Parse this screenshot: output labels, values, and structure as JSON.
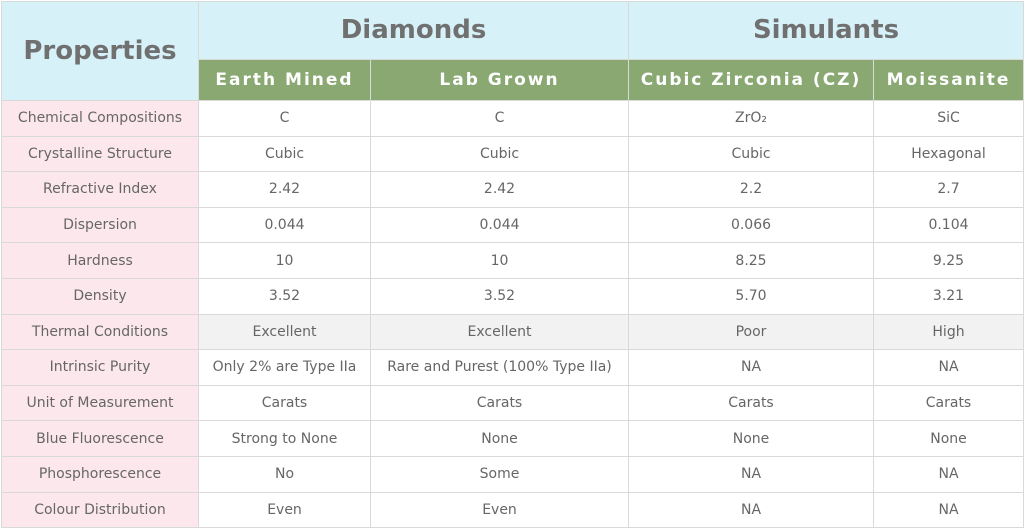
{
  "table": {
    "corner": "Properties",
    "groups": [
      "Diamonds",
      "Simulants"
    ],
    "columns": [
      "Earth Mined",
      "Lab Grown",
      "Cubic Zirconia (CZ)",
      "Moissanite"
    ],
    "rows": [
      [
        "Chemical Compositions",
        "C",
        "C",
        "ZrO₂",
        "SiC"
      ],
      [
        "Crystalline Structure",
        "Cubic",
        "Cubic",
        "Cubic",
        "Hexagonal"
      ],
      [
        "Refractive Index",
        "2.42",
        "2.42",
        "2.2",
        "2.7"
      ],
      [
        "Dispersion",
        "0.044",
        "0.044",
        "0.066",
        "0.104"
      ],
      [
        "Hardness",
        "10",
        "10",
        "8.25",
        "9.25"
      ],
      [
        "Density",
        "3.52",
        "3.52",
        "5.70",
        "3.21"
      ],
      [
        "Thermal Conditions",
        "Excellent",
        "Excellent",
        "Poor",
        "High"
      ],
      [
        "Intrinsic Purity",
        "Only 2% are Type IIa",
        "Rare and Purest (100% Type IIa)",
        "NA",
        "NA"
      ],
      [
        "Unit of Measurement",
        "Carats",
        "Carats",
        "Carats",
        "Carats"
      ],
      [
        "Blue Fluorescence",
        "Strong to None",
        "None",
        "None",
        "None"
      ],
      [
        "Phosphorescence",
        "No",
        "Some",
        "NA",
        "NA"
      ],
      [
        "Colour Distribution",
        "Even",
        "Even",
        "NA",
        "NA"
      ]
    ]
  }
}
